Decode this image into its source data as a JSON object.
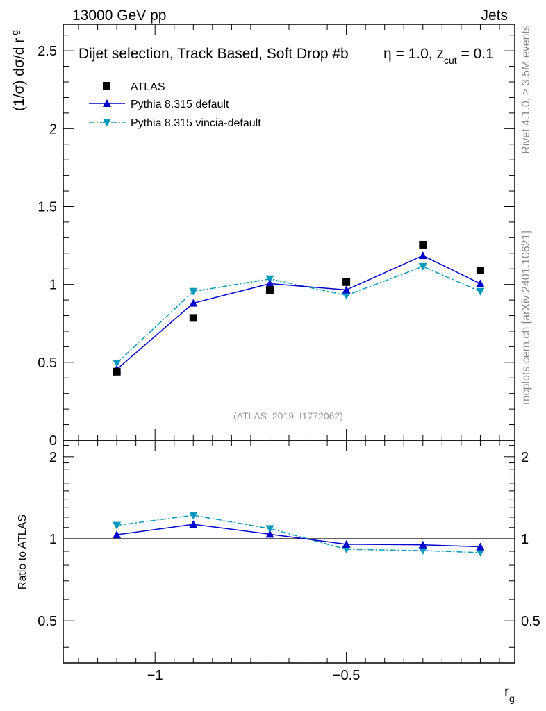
{
  "header": {
    "left": "13000 GeV pp",
    "right": "Jets"
  },
  "side_labels": {
    "rivet": "Rivet 4.1.0, ≥ 3.5M events",
    "mcplots": "mcplots.cern.ch [arXiv:2401.10621]"
  },
  "colors": {
    "atlas": "#000000",
    "pythia_default": "#0000cc",
    "pythia_vincia": "#0099bb",
    "watermark": "#999999",
    "side_text": "#888888"
  },
  "chart_data": [
    {
      "type": "scatter",
      "panel": "main",
      "title": "Dijet selection, Track Based, Soft Drop #b",
      "title_suffix": "η = 1.0, z",
      "title_sub": "cut",
      "title_tail": " = 0.1",
      "ylabel": "(1/σ) dσ/d r",
      "ylabel_sub": "g",
      "watermark": "(ATLAS_2019_I1772062)",
      "xlim": [
        -1.24,
        -0.06
      ],
      "ylim": [
        0,
        2.67
      ],
      "yticks": [
        0.5,
        1,
        1.5,
        2,
        2.5
      ],
      "ytick_labels": [
        "0.5",
        "1",
        "1.5",
        "2",
        "2.5"
      ],
      "ytick_zero_label": "0",
      "x": [
        -1.1,
        -0.9,
        -0.7,
        -0.5,
        -0.3,
        -0.15
      ],
      "series": [
        {
          "name": "ATLAS",
          "style": "square",
          "values": [
            0.44,
            0.785,
            0.965,
            1.015,
            1.255,
            1.09
          ]
        },
        {
          "name": "Pythia 8.315 default",
          "style": "line-up",
          "values": [
            0.455,
            0.88,
            1.005,
            0.965,
            1.185,
            1.005
          ]
        },
        {
          "name": "Pythia 8.315 vincia-default",
          "style": "dashdot-down",
          "values": [
            0.495,
            0.955,
            1.035,
            0.93,
            1.115,
            0.955
          ]
        }
      ]
    },
    {
      "type": "line",
      "panel": "ratio",
      "ylabel": "Ratio to ATLAS",
      "xlabel": "r",
      "xlabel_sub": "g",
      "xlim": [
        -1.24,
        -0.06
      ],
      "ylim": [
        0.35,
        2.3
      ],
      "yticks": [
        0.5,
        1,
        2
      ],
      "ytick_labels": [
        "0.5",
        "1",
        "2"
      ],
      "xticks": [
        -1,
        -0.5
      ],
      "xtick_labels": [
        "−1",
        "−0.5"
      ],
      "x": [
        -1.1,
        -0.9,
        -0.7,
        -0.5,
        -0.3,
        -0.15
      ],
      "series": [
        {
          "name": "Pythia 8.315 default",
          "style": "line-up",
          "values": [
            1.035,
            1.13,
            1.04,
            0.955,
            0.95,
            0.935
          ]
        },
        {
          "name": "Pythia 8.315 vincia-default",
          "style": "dashdot-down",
          "values": [
            1.12,
            1.22,
            1.09,
            0.915,
            0.905,
            0.89
          ]
        }
      ]
    }
  ]
}
